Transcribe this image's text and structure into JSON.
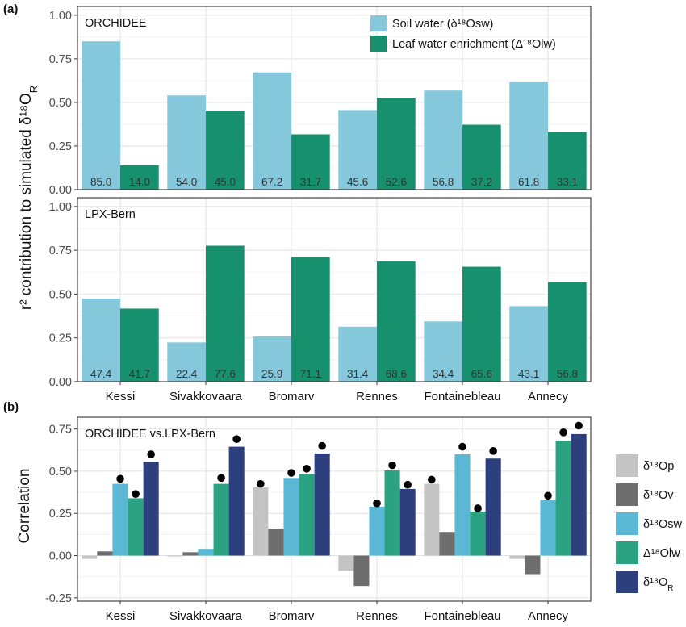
{
  "chart_data": [
    {
      "panel": "(a)",
      "type": "bar",
      "title": "ORCHIDEE",
      "ylabel": "r² contribution to simulated δ¹⁸O_R",
      "ylim": [
        0,
        1.05
      ],
      "yticks": [
        "0.00",
        "0.25",
        "0.50",
        "0.75",
        "1.00"
      ],
      "grid": true,
      "legend_position": "top-right",
      "categories": [
        "Kessi",
        "Sivakkovaara",
        "Bromarv",
        "Rennes",
        "Fontainebleau",
        "Annecy"
      ],
      "series": [
        {
          "name": "Soil water (δ¹⁸Osw)",
          "color": "#85c8dc",
          "values": [
            0.85,
            0.54,
            0.672,
            0.456,
            0.568,
            0.618
          ],
          "labels": [
            "85.0",
            "54.0",
            "67.2",
            "45.6",
            "56.8",
            "61.8"
          ]
        },
        {
          "name": "Leaf water enrichment (Δ¹⁸Olw)",
          "color": "#17906e",
          "values": [
            0.14,
            0.45,
            0.317,
            0.526,
            0.372,
            0.331
          ],
          "labels": [
            "14.0",
            "45.0",
            "31.7",
            "52.6",
            "37.2",
            "33.1"
          ]
        }
      ]
    },
    {
      "type": "bar",
      "title": "LPX-Bern",
      "ylim": [
        0,
        1.05
      ],
      "yticks": [
        "0.00",
        "0.25",
        "0.50",
        "0.75",
        "1.00"
      ],
      "grid": true,
      "categories": [
        "Kessi",
        "Sivakkovaara",
        "Bromarv",
        "Rennes",
        "Fontainebleau",
        "Annecy"
      ],
      "series": [
        {
          "name": "Soil water (δ¹⁸Osw)",
          "color": "#85c8dc",
          "values": [
            0.474,
            0.224,
            0.259,
            0.314,
            0.344,
            0.431
          ],
          "labels": [
            "47.4",
            "22.4",
            "25.9",
            "31.4",
            "34.4",
            "43.1"
          ]
        },
        {
          "name": "Leaf water enrichment (Δ¹⁸Olw)",
          "color": "#17906e",
          "values": [
            0.417,
            0.776,
            0.711,
            0.686,
            0.656,
            0.568
          ],
          "labels": [
            "41.7",
            "77.6",
            "71.1",
            "68.6",
            "65.6",
            "56.8"
          ]
        }
      ]
    },
    {
      "panel": "(b)",
      "type": "bar",
      "title": "ORCHIDEE vs.LPX-Bern",
      "ylabel": "Correlation",
      "ylim": [
        -0.27,
        0.82
      ],
      "yticks": [
        "-0.25",
        "0.00",
        "0.25",
        "0.50",
        "0.75"
      ],
      "grid": true,
      "legend_position": "right",
      "categories": [
        "Kessi",
        "Sivakkovaara",
        "Bromarv",
        "Rennes",
        "Fontainebleau",
        "Annecy"
      ],
      "series": [
        {
          "name": "δ¹⁸Op",
          "color": "#c4c4c4",
          "values": [
            -0.02,
            -0.005,
            0.405,
            -0.09,
            0.425,
            -0.02
          ]
        },
        {
          "name": "δ¹⁸Ov",
          "color": "#6e6e6e",
          "values": [
            0.025,
            0.02,
            0.16,
            -0.18,
            0.14,
            -0.11
          ]
        },
        {
          "name": "δ¹⁸Osw",
          "color": "#5ab8d4",
          "values": [
            0.425,
            0.04,
            0.46,
            0.29,
            0.6,
            0.33
          ]
        },
        {
          "name": "Δ¹⁸Olw",
          "color": "#2ba383",
          "values": [
            0.34,
            0.425,
            0.485,
            0.505,
            0.26,
            0.68
          ]
        },
        {
          "name": "δ¹⁸O_R",
          "color": "#2d3f7c",
          "values": [
            0.555,
            0.645,
            0.605,
            0.395,
            0.575,
            0.72
          ]
        }
      ],
      "markers": [
        {
          "series": "δ¹⁸Op",
          "values": [
            null,
            null,
            0.425,
            null,
            0.45,
            null
          ]
        },
        {
          "series": "δ¹⁸Osw",
          "values": [
            0.455,
            null,
            0.49,
            0.31,
            0.645,
            0.355
          ]
        },
        {
          "series": "Δ¹⁸Olw",
          "values": [
            0.365,
            0.46,
            0.515,
            0.535,
            0.28,
            0.73
          ]
        },
        {
          "series": "δ¹⁸O_R",
          "values": [
            0.6,
            0.69,
            0.65,
            0.42,
            0.62,
            0.77
          ]
        }
      ]
    }
  ]
}
